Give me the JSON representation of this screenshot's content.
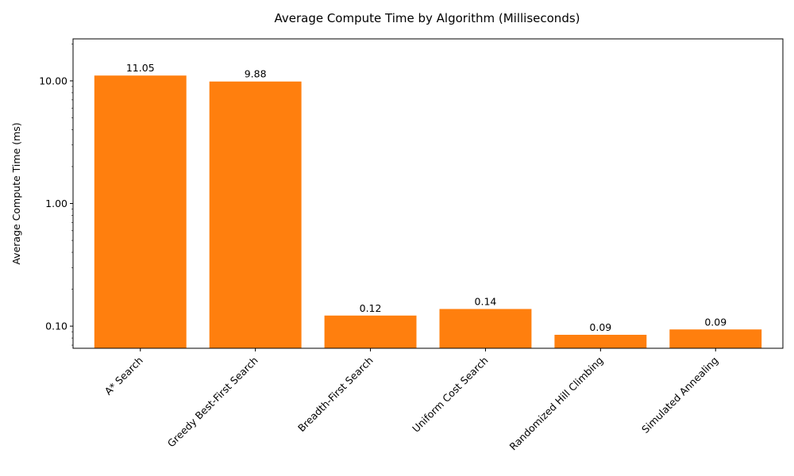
{
  "chart_data": {
    "type": "bar",
    "title": "Average Compute Time by Algorithm (Milliseconds)",
    "xlabel": "",
    "ylabel": "Average Compute Time (ms)",
    "yscale": "log",
    "ylim": [
      0.066,
      22
    ],
    "yticks": [
      0.1,
      1,
      10
    ],
    "ytick_labels": [
      "0.10",
      "1.00",
      "10.00"
    ],
    "categories": [
      "A* Search",
      "Greedy Best-First Search",
      "Breadth-First Search",
      "Uniform Cost Search",
      "Randomized Hill Climbing",
      "Simulated Annealing"
    ],
    "values": [
      11.05,
      9.88,
      0.122,
      0.138,
      0.085,
      0.094
    ],
    "data_labels": [
      "11.05",
      "9.88",
      "0.12",
      "0.14",
      "0.09",
      "0.09"
    ],
    "bar_color": "#ff7f0e",
    "grid": false,
    "legend": null
  }
}
